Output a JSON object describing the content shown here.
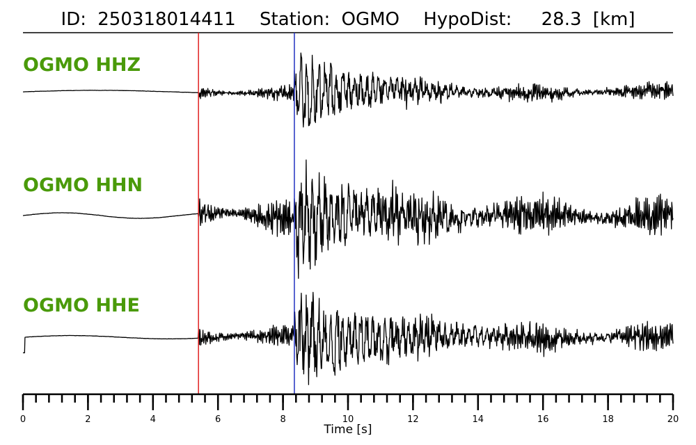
{
  "header": {
    "id_label": "ID:",
    "id_value": "250318014411",
    "station_label": "Station:",
    "station_value": "OGMO",
    "hypodist_label": "HypoDist:",
    "hypodist_value": "28.3",
    "hypodist_unit": "[km]"
  },
  "colors": {
    "label": "#4a9a0a",
    "trace": "#000000",
    "p_pick": "#e02020",
    "s_pick": "#2030c0"
  },
  "chart_data": {
    "type": "line",
    "xlabel": "Time [s]",
    "xlim": [
      0,
      20
    ],
    "major_ticks": [
      0,
      2,
      4,
      6,
      8,
      10,
      12,
      14,
      16,
      18,
      20
    ],
    "minor_tick_step": 0.4,
    "picks": {
      "p_time": 5.4,
      "s_time": 8.35
    },
    "series": [
      {
        "name": "OGMO HHZ",
        "pre_amp": 0.05,
        "pre_wave": 0.03,
        "p_amp": 0.16,
        "s_amp": 1.0,
        "coda_amp": 0.13,
        "decay": 0.45,
        "seed": 11,
        "period": 9.0
      },
      {
        "name": "OGMO HHN",
        "pre_amp": 0.12,
        "pre_wave": 0.05,
        "p_amp": 0.32,
        "s_amp": 1.0,
        "coda_amp": 0.22,
        "decay": 0.35,
        "seed": 23,
        "period": 4.8
      },
      {
        "name": "OGMO HHE",
        "pre_amp": 0.1,
        "pre_wave": 0.03,
        "p_amp": 0.22,
        "s_amp": 0.95,
        "coda_amp": 0.2,
        "decay": 0.32,
        "seed": 37,
        "period": 6.0
      }
    ]
  }
}
